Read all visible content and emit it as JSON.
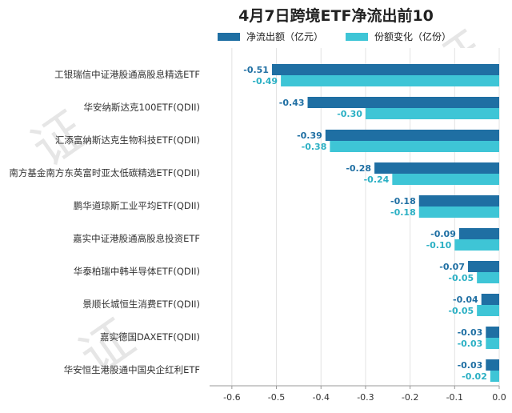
{
  "chart_data": {
    "type": "bar",
    "orientation": "horizontal",
    "title": "4月7日跨境ETF净流出前10",
    "categories": [
      "工银瑞信中证港股通高股息精选ETF",
      "华安纳斯达克100ETF(QDII)",
      "汇添富纳斯达克生物科技ETF(QDII)",
      "南方基金南方东英富时亚太低碳精选ETF(QDII)",
      "鹏华道琼斯工业平均ETF(QDII)",
      "嘉实中证港股通高股息投资ETF",
      "华泰柏瑞中韩半导体ETF(QDII)",
      "景顺长城恒生消费ETF(QDII)",
      "嘉实德国DAXETF(QDII)",
      "华安恒生港股通中国央企红利ETF"
    ],
    "series": [
      {
        "name": "净流出额（亿元）",
        "color": "#1f6fa3",
        "labelColor": "#1f6fa3",
        "values": [
          -0.51,
          -0.43,
          -0.39,
          -0.28,
          -0.18,
          -0.09,
          -0.07,
          -0.04,
          -0.03,
          -0.03
        ],
        "labels": [
          "-0.51",
          "-0.43",
          "-0.39",
          "-0.28",
          "-0.18",
          "-0.09",
          "-0.07",
          "-0.04",
          "-0.03",
          "-0.03"
        ]
      },
      {
        "name": "份额变化（亿份）",
        "color": "#3ec5d6",
        "labelColor": "#2bb0c4",
        "values": [
          -0.49,
          -0.3,
          -0.38,
          -0.24,
          -0.18,
          -0.1,
          -0.05,
          -0.05,
          -0.03,
          -0.02
        ],
        "labels": [
          "-0.49",
          "-0.30",
          "-0.38",
          "-0.24",
          "-0.18",
          "-0.10",
          "-0.05",
          "-0.05",
          "-0.03",
          "-0.02"
        ]
      }
    ],
    "xlim": [
      -0.65,
      0
    ],
    "xticks": [
      -0.6,
      -0.5,
      -0.4,
      -0.3,
      -0.2,
      -0.1,
      0.0
    ],
    "xtick_labels": [
      "-0.6",
      "-0.5",
      "-0.4",
      "-0.3",
      "-0.2",
      "-0.1",
      "0.0"
    ],
    "xlabel": "",
    "ylabel": "",
    "legend_position": "top-center",
    "grid": "x",
    "colors": {
      "grid": "#e3e3e3",
      "axis": "#999999",
      "plot_bg": "#ffffff"
    }
  }
}
